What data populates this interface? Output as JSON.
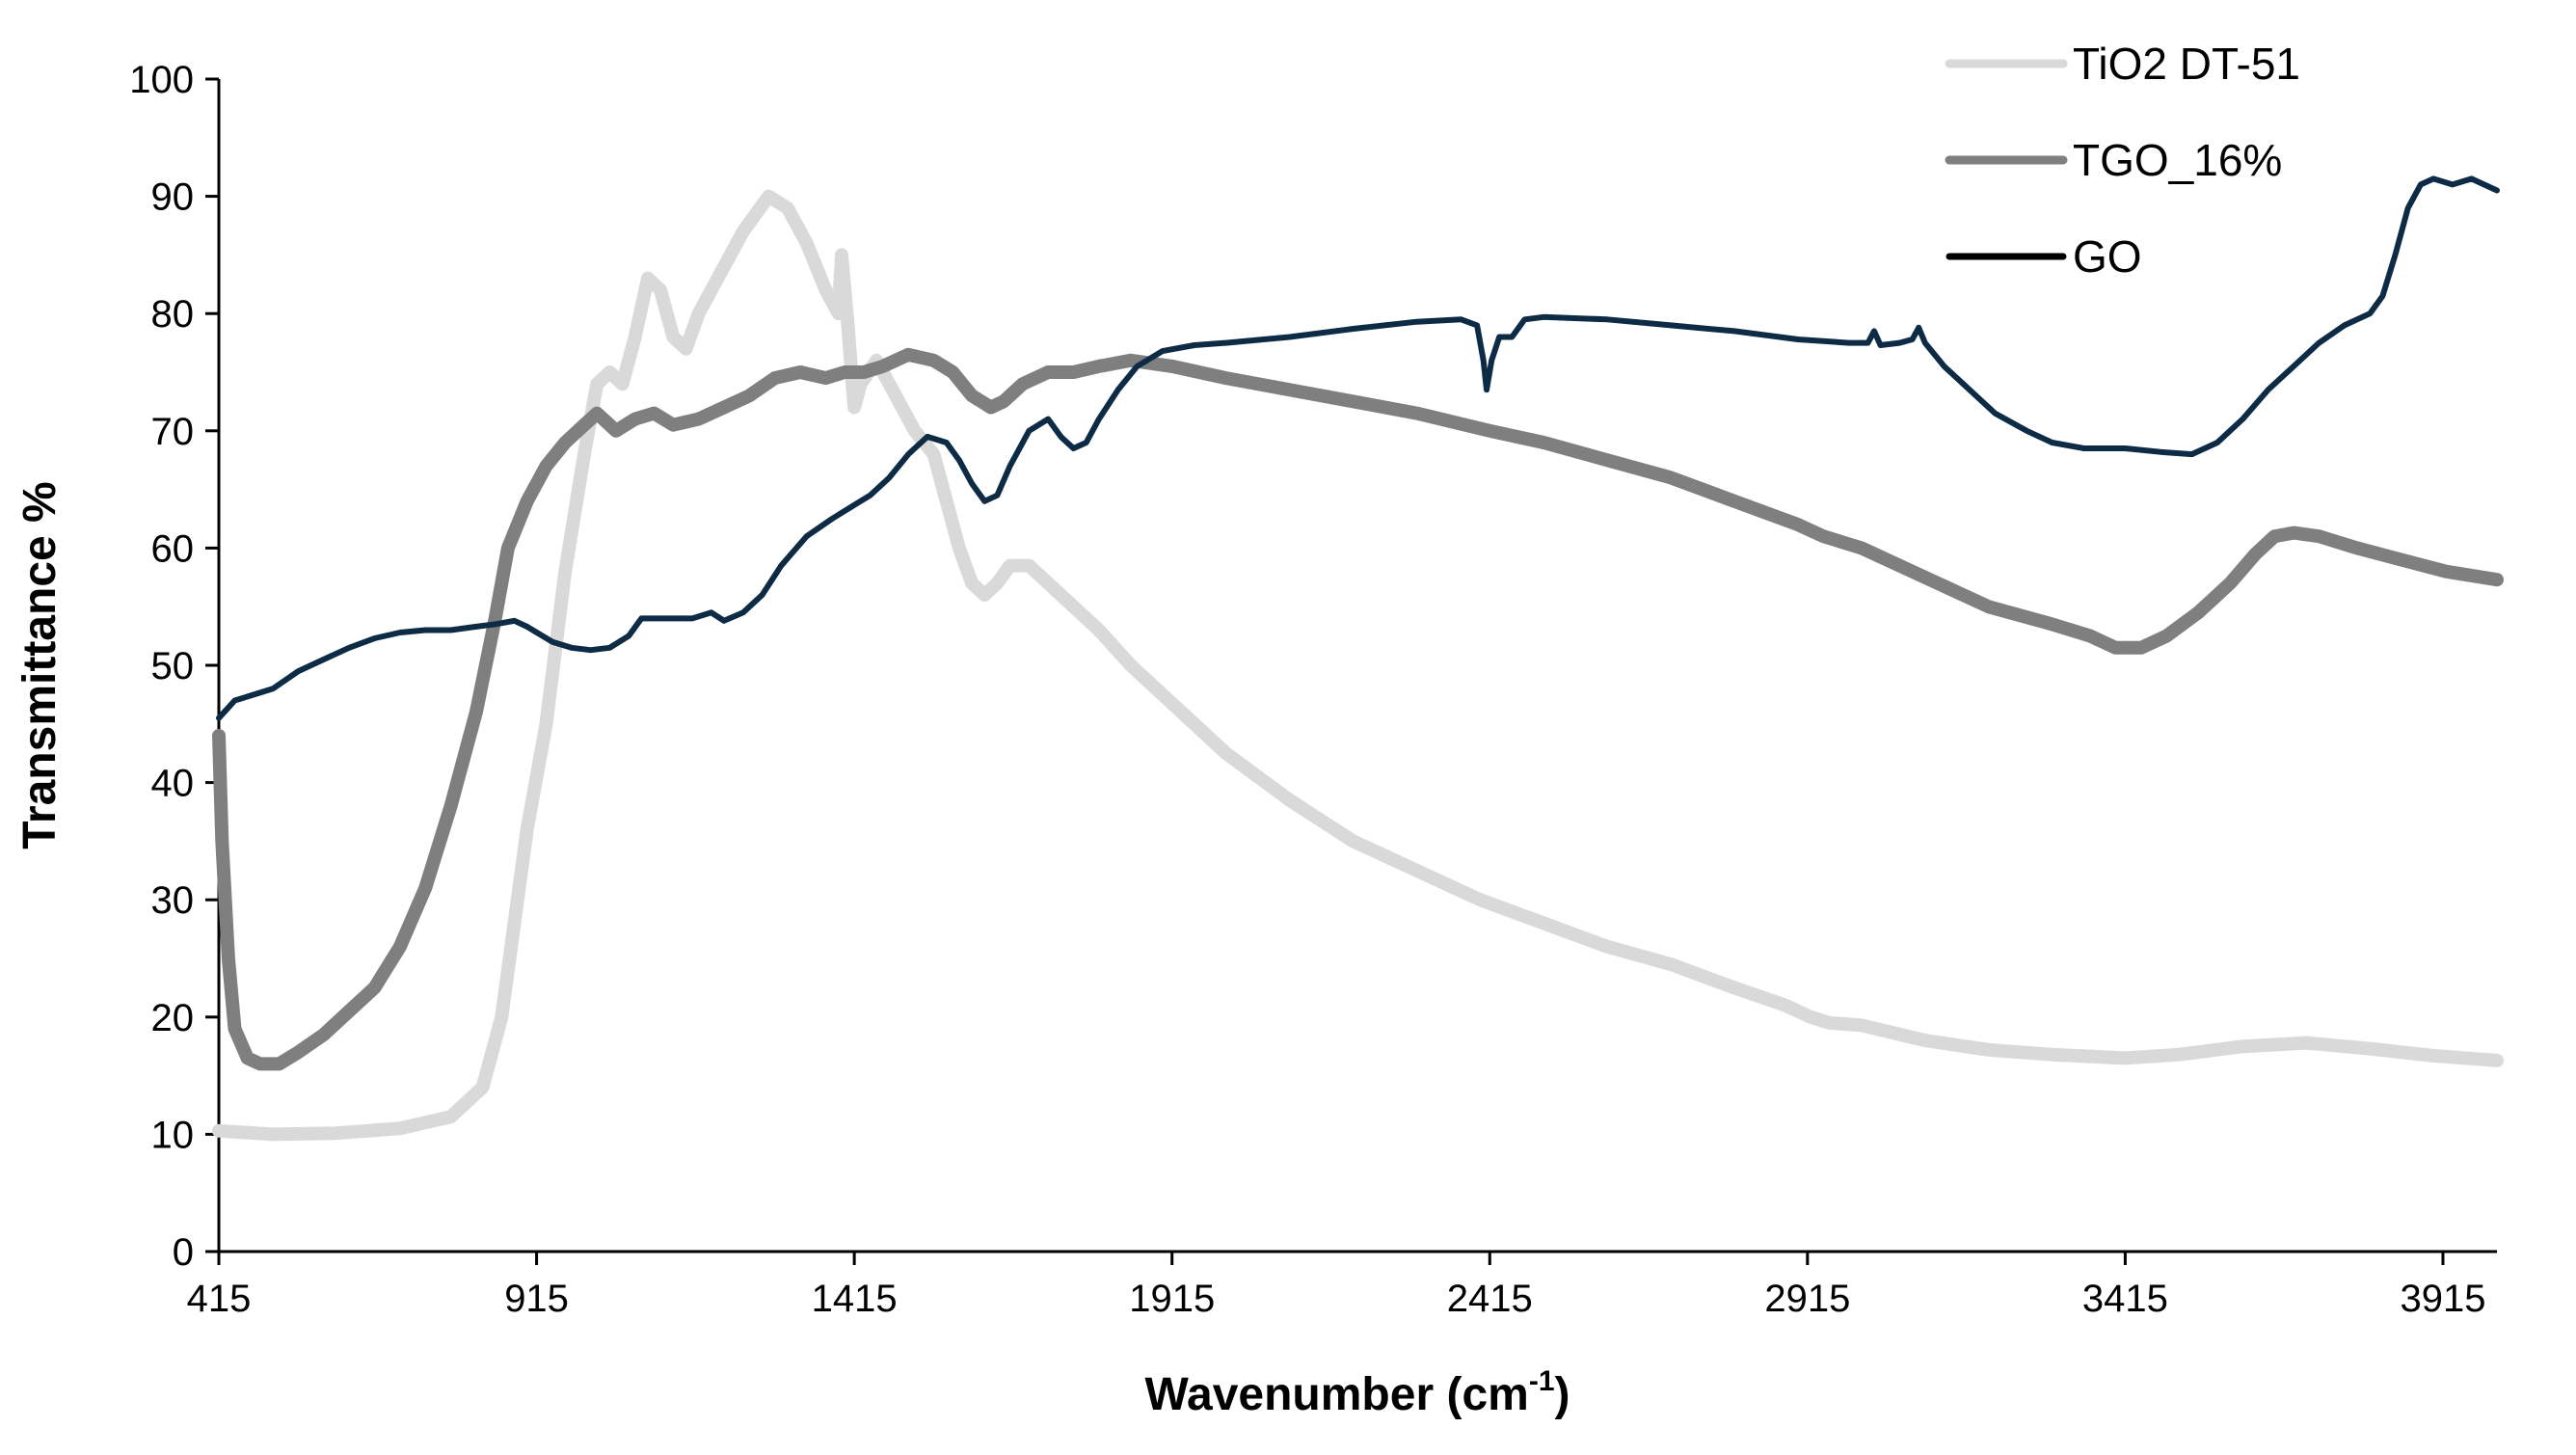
{
  "chart_data": {
    "type": "line",
    "title": "",
    "xlabel": "Wavenumber (cm",
    "xlabel_sup": "-1",
    "xlabel_suffix": ")",
    "ylabel": "Transmittance %",
    "xlim": [
      415,
      4000
    ],
    "ylim": [
      0,
      100
    ],
    "x_ticks": [
      415,
      915,
      1415,
      1915,
      2415,
      2915,
      3415,
      3915
    ],
    "y_ticks": [
      0,
      10,
      20,
      30,
      40,
      50,
      60,
      70,
      80,
      90,
      100
    ],
    "grid": false,
    "legend_position": "top-right",
    "series": [
      {
        "name": "TiO2 DT-51",
        "color": "#d9d9d9",
        "points": [
          [
            415,
            10.3
          ],
          [
            500,
            10
          ],
          [
            600,
            10.1
          ],
          [
            700,
            10.5
          ],
          [
            780,
            11.5
          ],
          [
            830,
            14
          ],
          [
            860,
            20
          ],
          [
            880,
            28
          ],
          [
            900,
            36
          ],
          [
            930,
            45
          ],
          [
            960,
            58
          ],
          [
            990,
            68
          ],
          [
            1010,
            74
          ],
          [
            1030,
            75
          ],
          [
            1050,
            74
          ],
          [
            1070,
            78
          ],
          [
            1090,
            83
          ],
          [
            1110,
            82
          ],
          [
            1130,
            78
          ],
          [
            1150,
            77
          ],
          [
            1170,
            80
          ],
          [
            1200,
            83
          ],
          [
            1240,
            87
          ],
          [
            1280,
            90
          ],
          [
            1310,
            89
          ],
          [
            1340,
            86
          ],
          [
            1370,
            82
          ],
          [
            1390,
            80
          ],
          [
            1395,
            85
          ],
          [
            1405,
            79
          ],
          [
            1415,
            72
          ],
          [
            1425,
            74
          ],
          [
            1450,
            76
          ],
          [
            1480,
            73
          ],
          [
            1510,
            70
          ],
          [
            1540,
            68
          ],
          [
            1560,
            64
          ],
          [
            1580,
            60
          ],
          [
            1600,
            57
          ],
          [
            1620,
            56
          ],
          [
            1640,
            57
          ],
          [
            1660,
            58.5
          ],
          [
            1690,
            58.5
          ],
          [
            1720,
            57
          ],
          [
            1760,
            55
          ],
          [
            1800,
            53
          ],
          [
            1850,
            50
          ],
          [
            1900,
            47.5
          ],
          [
            1950,
            45
          ],
          [
            2000,
            42.5
          ],
          [
            2100,
            38.5
          ],
          [
            2200,
            35
          ],
          [
            2300,
            32.5
          ],
          [
            2400,
            30
          ],
          [
            2500,
            28
          ],
          [
            2600,
            26
          ],
          [
            2700,
            24.5
          ],
          [
            2800,
            22.5
          ],
          [
            2880,
            21
          ],
          [
            2920,
            20
          ],
          [
            2950,
            19.5
          ],
          [
            3000,
            19.3
          ],
          [
            3100,
            18
          ],
          [
            3200,
            17.2
          ],
          [
            3300,
            16.8
          ],
          [
            3415,
            16.5
          ],
          [
            3500,
            16.8
          ],
          [
            3600,
            17.5
          ],
          [
            3700,
            17.8
          ],
          [
            3800,
            17.3
          ],
          [
            3900,
            16.7
          ],
          [
            4000,
            16.3
          ]
        ]
      },
      {
        "name": "TGO_16%",
        "color": "#7f7f7f",
        "points": [
          [
            415,
            44
          ],
          [
            420,
            35
          ],
          [
            430,
            25
          ],
          [
            440,
            19
          ],
          [
            460,
            16.5
          ],
          [
            480,
            16
          ],
          [
            510,
            16
          ],
          [
            540,
            17
          ],
          [
            580,
            18.5
          ],
          [
            620,
            20.5
          ],
          [
            660,
            22.5
          ],
          [
            700,
            26
          ],
          [
            740,
            31
          ],
          [
            780,
            38
          ],
          [
            820,
            46
          ],
          [
            850,
            54
          ],
          [
            870,
            60
          ],
          [
            900,
            64
          ],
          [
            930,
            67
          ],
          [
            960,
            69
          ],
          [
            990,
            70.5
          ],
          [
            1010,
            71.5
          ],
          [
            1040,
            70
          ],
          [
            1070,
            71
          ],
          [
            1100,
            71.5
          ],
          [
            1130,
            70.5
          ],
          [
            1170,
            71
          ],
          [
            1210,
            72
          ],
          [
            1250,
            73
          ],
          [
            1290,
            74.5
          ],
          [
            1330,
            75
          ],
          [
            1370,
            74.5
          ],
          [
            1400,
            75
          ],
          [
            1430,
            75
          ],
          [
            1460,
            75.5
          ],
          [
            1500,
            76.5
          ],
          [
            1540,
            76
          ],
          [
            1570,
            75
          ],
          [
            1600,
            73
          ],
          [
            1630,
            72
          ],
          [
            1650,
            72.5
          ],
          [
            1680,
            74
          ],
          [
            1720,
            75
          ],
          [
            1760,
            75
          ],
          [
            1800,
            75.5
          ],
          [
            1850,
            76
          ],
          [
            1915,
            75.5
          ],
          [
            2000,
            74.5
          ],
          [
            2100,
            73.5
          ],
          [
            2200,
            72.5
          ],
          [
            2300,
            71.5
          ],
          [
            2415,
            70
          ],
          [
            2500,
            69
          ],
          [
            2600,
            67.5
          ],
          [
            2700,
            66
          ],
          [
            2800,
            64
          ],
          [
            2900,
            62
          ],
          [
            2940,
            61
          ],
          [
            3000,
            60
          ],
          [
            3100,
            57.5
          ],
          [
            3200,
            55
          ],
          [
            3300,
            53.5
          ],
          [
            3360,
            52.5
          ],
          [
            3400,
            51.5
          ],
          [
            3440,
            51.5
          ],
          [
            3480,
            52.5
          ],
          [
            3530,
            54.5
          ],
          [
            3580,
            57
          ],
          [
            3620,
            59.5
          ],
          [
            3650,
            61
          ],
          [
            3680,
            61.3
          ],
          [
            3720,
            61
          ],
          [
            3780,
            60
          ],
          [
            3850,
            59
          ],
          [
            3920,
            58
          ],
          [
            4000,
            57.3
          ]
        ]
      },
      {
        "name": "GO",
        "color": "#0d2b45",
        "points": [
          [
            415,
            45.5
          ],
          [
            440,
            47
          ],
          [
            470,
            47.5
          ],
          [
            500,
            48
          ],
          [
            540,
            49.5
          ],
          [
            580,
            50.5
          ],
          [
            620,
            51.5
          ],
          [
            660,
            52.3
          ],
          [
            700,
            52.8
          ],
          [
            740,
            53
          ],
          [
            780,
            53
          ],
          [
            820,
            53.3
          ],
          [
            850,
            53.5
          ],
          [
            880,
            53.8
          ],
          [
            900,
            53.3
          ],
          [
            940,
            52
          ],
          [
            970,
            51.5
          ],
          [
            1000,
            51.3
          ],
          [
            1030,
            51.5
          ],
          [
            1060,
            52.5
          ],
          [
            1080,
            54
          ],
          [
            1100,
            54
          ],
          [
            1130,
            54
          ],
          [
            1160,
            54
          ],
          [
            1190,
            54.5
          ],
          [
            1210,
            53.8
          ],
          [
            1240,
            54.5
          ],
          [
            1270,
            56
          ],
          [
            1300,
            58.5
          ],
          [
            1340,
            61
          ],
          [
            1380,
            62.5
          ],
          [
            1410,
            63.5
          ],
          [
            1440,
            64.5
          ],
          [
            1470,
            66
          ],
          [
            1500,
            68
          ],
          [
            1530,
            69.5
          ],
          [
            1560,
            69
          ],
          [
            1580,
            67.5
          ],
          [
            1600,
            65.5
          ],
          [
            1620,
            64
          ],
          [
            1640,
            64.5
          ],
          [
            1660,
            67
          ],
          [
            1690,
            70
          ],
          [
            1720,
            71
          ],
          [
            1740,
            69.5
          ],
          [
            1760,
            68.5
          ],
          [
            1780,
            69
          ],
          [
            1800,
            71
          ],
          [
            1830,
            73.5
          ],
          [
            1860,
            75.5
          ],
          [
            1900,
            76.8
          ],
          [
            1950,
            77.3
          ],
          [
            2000,
            77.5
          ],
          [
            2100,
            78
          ],
          [
            2200,
            78.7
          ],
          [
            2300,
            79.3
          ],
          [
            2370,
            79.5
          ],
          [
            2395,
            79
          ],
          [
            2405,
            76
          ],
          [
            2410,
            73.5
          ],
          [
            2418,
            76
          ],
          [
            2430,
            78
          ],
          [
            2450,
            78
          ],
          [
            2470,
            79.5
          ],
          [
            2500,
            79.7
          ],
          [
            2600,
            79.5
          ],
          [
            2700,
            79
          ],
          [
            2800,
            78.5
          ],
          [
            2900,
            77.8
          ],
          [
            2980,
            77.5
          ],
          [
            3010,
            77.5
          ],
          [
            3020,
            78.5
          ],
          [
            3030,
            77.3
          ],
          [
            3060,
            77.5
          ],
          [
            3080,
            77.8
          ],
          [
            3090,
            78.8
          ],
          [
            3100,
            77.5
          ],
          [
            3130,
            75.5
          ],
          [
            3170,
            73.5
          ],
          [
            3210,
            71.5
          ],
          [
            3260,
            70
          ],
          [
            3300,
            69
          ],
          [
            3350,
            68.5
          ],
          [
            3415,
            68.5
          ],
          [
            3470,
            68.2
          ],
          [
            3520,
            68
          ],
          [
            3560,
            69
          ],
          [
            3600,
            71
          ],
          [
            3640,
            73.5
          ],
          [
            3680,
            75.5
          ],
          [
            3720,
            77.5
          ],
          [
            3760,
            79
          ],
          [
            3800,
            80
          ],
          [
            3820,
            81.5
          ],
          [
            3840,
            85
          ],
          [
            3860,
            89
          ],
          [
            3880,
            91
          ],
          [
            3900,
            91.5
          ],
          [
            3930,
            91
          ],
          [
            3960,
            91.5
          ],
          [
            4000,
            90.5
          ]
        ]
      }
    ]
  }
}
